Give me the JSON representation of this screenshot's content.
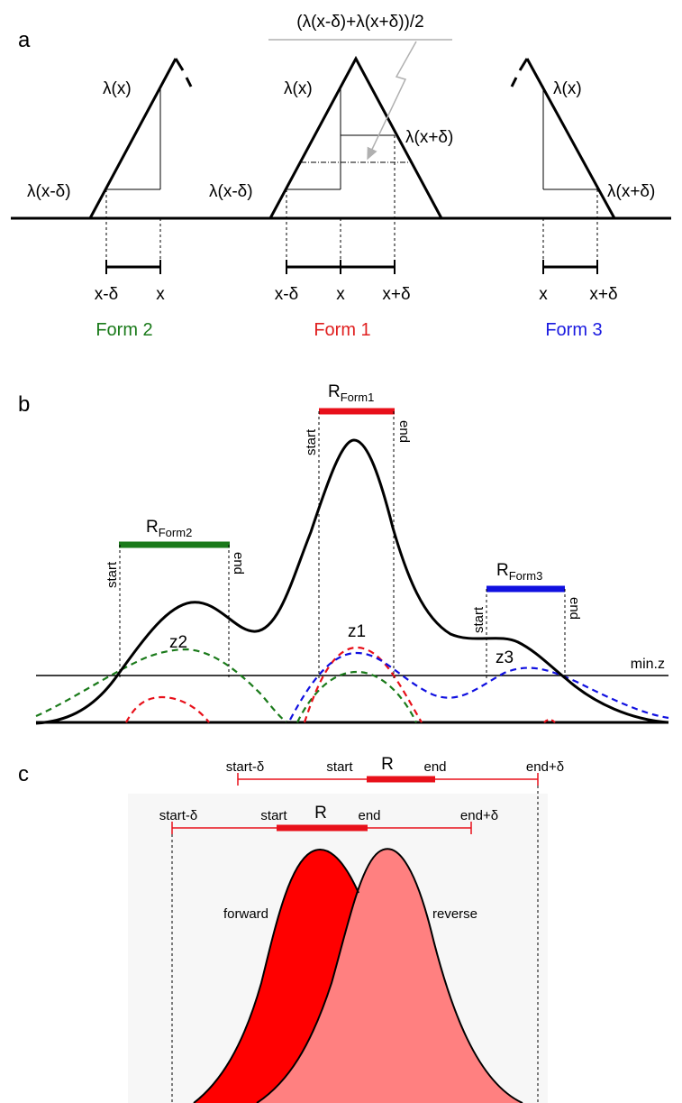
{
  "panel_a": {
    "letter": "a",
    "top_formula": "(λ(x-δ)+λ(x+δ))/2",
    "form2": {
      "lam_x": "λ(x)",
      "lam_xmd": "λ(x-δ)",
      "tick_left": "x-δ",
      "tick_right": "x",
      "name": "Form 2",
      "color": "#1a7a1a"
    },
    "form1": {
      "lam_x": "λ(x)",
      "lam_xmd": "λ(x-δ)",
      "lam_xpd": "λ(x+δ)",
      "tick_left": "x-δ",
      "tick_mid": "x",
      "tick_right": "x+δ",
      "name": "Form 1",
      "color": "#e02020"
    },
    "form3": {
      "lam_x": "λ(x)",
      "lam_xpd": "λ(x+δ)",
      "tick_left": "x",
      "tick_right": "x+δ",
      "name": "Form 3",
      "color": "#1a1ae0"
    }
  },
  "panel_b": {
    "letter": "b",
    "r_label": "R",
    "r1_sub": "Form1",
    "r2_sub": "Form2",
    "r3_sub": "Form3",
    "start": "start",
    "end": "end",
    "z1": "z1",
    "z2": "z2",
    "z3": "z3",
    "minz": "min.z",
    "colors": {
      "form1": "#e8101a",
      "form2": "#1a7a1a",
      "form3": "#1010e0"
    }
  },
  "panel_c": {
    "letter": "c",
    "top_row": {
      "start_minus": "start-δ",
      "start": "start",
      "r": "R",
      "end": "end",
      "end_plus": "end+δ"
    },
    "bottom_row": {
      "start_minus": "start-δ",
      "start": "start",
      "r": "R",
      "end": "end",
      "end_plus": "end+δ"
    },
    "forward": "forward",
    "reverse": "reverse",
    "colors": {
      "forward": "#ff0000",
      "reverse": "#ff8080",
      "bar": "#e8101a"
    }
  }
}
